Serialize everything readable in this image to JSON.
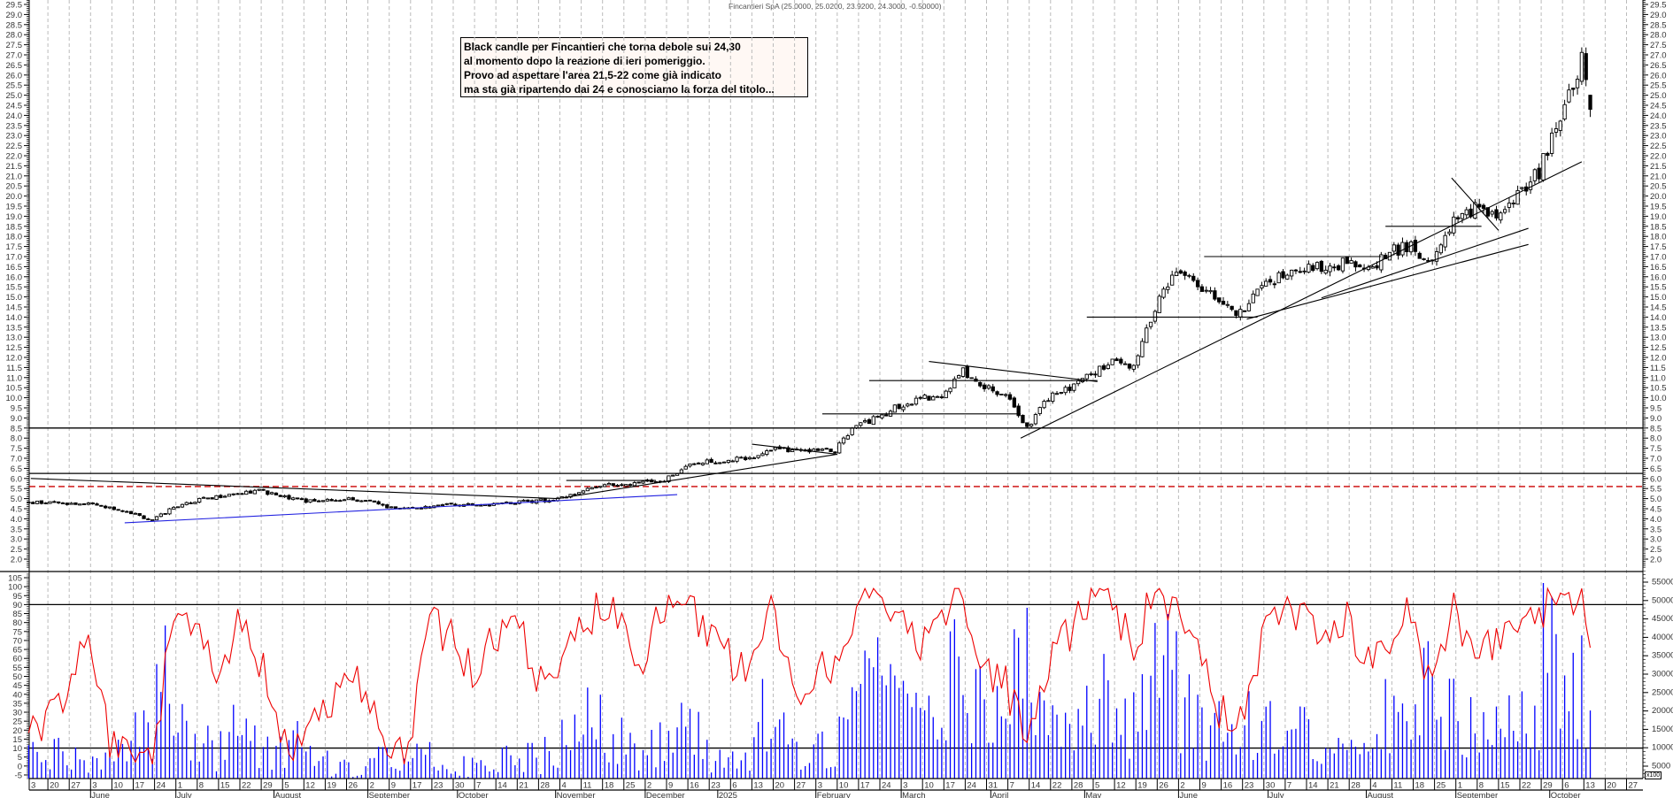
{
  "header": {
    "title": "Fincantieri SpA (25.0000, 25.0200, 23.9200, 24.3000, -0.50000)"
  },
  "annotation": {
    "lines": [
      "Black candle per Fincantieri che torna debole sui 24,30",
      "al momento dopo la reazione di ieri pomeriggio.",
      "Provo ad aspettare l'area 21,5-22 come già indicato",
      "ma sta già ripartendo dai 24 e conosciamo la forza del titolo..."
    ]
  },
  "chart_data": {
    "type": "candlestick",
    "instrument": "Fincantieri SpA",
    "last_candle": {
      "open": 25.0,
      "high": 25.02,
      "low": 23.92,
      "close": 24.3,
      "change": -0.5
    },
    "price_axis": {
      "ylim": [
        2.0,
        29.5
      ],
      "ticks": [
        "2.0",
        "2.5",
        "3.0",
        "3.5",
        "4.0",
        "4.5",
        "5.0",
        "5.5",
        "6.0",
        "6.5",
        "7.0",
        "7.5",
        "8.0",
        "8.5",
        "9.0",
        "9.5",
        "10.0",
        "10.5",
        "11.0",
        "11.5",
        "12.0",
        "12.5",
        "13.0",
        "13.5",
        "14.0",
        "14.5",
        "15.0",
        "15.5",
        "16.0",
        "16.5",
        "17.0",
        "17.5",
        "18.0",
        "18.5",
        "19.0",
        "19.5",
        "20.0",
        "20.5",
        "21.0",
        "21.5",
        "22.0",
        "22.5",
        "23.0",
        "23.5",
        "24.0",
        "24.5",
        "25.0",
        "25.5",
        "26.0",
        "26.5",
        "27.0",
        "27.5",
        "28.0",
        "28.5",
        "29.0",
        "29.5"
      ]
    },
    "oscillator_axis": {
      "ylim": [
        -5,
        105
      ],
      "ticks": [
        "105",
        "100",
        "95",
        "90",
        "85",
        "80",
        "75",
        "70",
        "65",
        "60",
        "55",
        "50",
        "45",
        "40",
        "35",
        "30",
        "25",
        "20",
        "15",
        "10",
        "5",
        "0",
        "-5"
      ],
      "levels": [
        90,
        10
      ]
    },
    "volume_axis": {
      "unit": "x100",
      "ticks": [
        "55000",
        "50000",
        "45000",
        "40000",
        "35000",
        "30000",
        "25000",
        "20000",
        "15000",
        "10000",
        "5000"
      ]
    },
    "x_axis": {
      "week_labels": [
        "3",
        "20",
        "27",
        "3",
        "10",
        "17",
        "24",
        "1",
        "8",
        "15",
        "22",
        "29",
        "5",
        "12",
        "19",
        "26",
        "2",
        "9",
        "17",
        "23",
        "30",
        "7",
        "14",
        "21",
        "28",
        "4",
        "11",
        "18",
        "25",
        "2",
        "9",
        "16",
        "23",
        "6",
        "13",
        "20",
        "27",
        "3",
        "10",
        "17",
        "24",
        "3",
        "10",
        "17",
        "24",
        "31",
        "7",
        "14",
        "22",
        "28",
        "5",
        "12",
        "19",
        "26",
        "2",
        "9",
        "16",
        "23",
        "30",
        "7",
        "14",
        "21",
        "28",
        "4",
        "11",
        "18",
        "25",
        "1",
        "8",
        "15",
        "22",
        "29",
        "6",
        "13",
        "20",
        "27"
      ],
      "month_labels": [
        "June",
        "July",
        "August",
        "September",
        "October",
        "November",
        "December",
        "2025",
        "February",
        "March",
        "April",
        "May",
        "June",
        "July",
        "August",
        "September",
        "October"
      ]
    },
    "weekly_close": [
      4.8,
      4.75,
      4.7,
      4.6,
      4.3,
      3.9,
      4.6,
      4.9,
      5.1,
      5.3,
      5.4,
      5.1,
      4.9,
      4.9,
      5.0,
      4.9,
      4.6,
      4.5,
      4.6,
      4.7,
      4.7,
      4.75,
      4.8,
      4.9,
      4.95,
      5.3,
      5.7,
      5.7,
      5.8,
      5.9,
      6.6,
      6.8,
      6.9,
      7.0,
      7.5,
      7.4,
      7.4,
      7.4,
      8.6,
      9.0,
      9.6,
      10.0,
      10.0,
      11.3,
      10.5,
      10.2,
      8.5,
      10.0,
      10.5,
      11.2,
      11.8,
      11.5,
      14.5,
      16.3,
      15.6,
      14.7,
      14.2,
      15.4,
      16.2,
      16.4,
      16.5,
      16.7,
      16.4,
      17.2,
      17.6,
      16.6,
      18.8,
      19.4,
      19.2,
      20.0,
      21.2,
      24.0,
      26.7,
      24.3
    ],
    "oscillator": [
      25,
      40,
      70,
      15,
      10,
      5,
      85,
      85,
      40,
      88,
      60,
      20,
      10,
      30,
      50,
      40,
      8,
      5,
      85,
      70,
      55,
      70,
      85,
      50,
      60,
      75,
      90,
      80,
      60,
      90,
      95,
      70,
      60,
      50,
      95,
      40,
      50,
      60,
      90,
      95,
      85,
      70,
      80,
      95,
      55,
      45,
      20,
      60,
      75,
      90,
      90,
      70,
      95,
      90,
      60,
      30,
      25,
      70,
      85,
      80,
      75,
      80,
      55,
      70,
      85,
      40,
      90,
      60,
      70,
      80,
      85,
      95,
      95,
      15
    ],
    "volume": [
      8000,
      9000,
      7000,
      6000,
      8000,
      15000,
      30000,
      14000,
      10000,
      18000,
      12000,
      9000,
      11000,
      8000,
      6000,
      5000,
      7000,
      9000,
      12000,
      6000,
      5000,
      5000,
      7000,
      9000,
      8000,
      13000,
      18000,
      12000,
      10000,
      13000,
      15000,
      14000,
      9000,
      8000,
      18000,
      12000,
      10000,
      12000,
      22000,
      25000,
      20000,
      18000,
      22000,
      30000,
      22000,
      18000,
      32000,
      16000,
      14000,
      18000,
      22000,
      20000,
      35000,
      30000,
      20000,
      14000,
      12000,
      16000,
      18000,
      14000,
      12000,
      13000,
      12000,
      18000,
      16000,
      25000,
      22000,
      20000,
      14000,
      16000,
      18000,
      35000,
      30000,
      18000
    ],
    "horizontal_lines": [
      {
        "price": 8.5,
        "color": "#000000",
        "style": "solid"
      },
      {
        "price": 6.25,
        "color": "#000000",
        "style": "solid"
      },
      {
        "price": 5.6,
        "color": "#cc0000",
        "style": "dashed"
      }
    ],
    "trendlines": [
      {
        "x1": 0.2,
        "y1": 6.0,
        "x2": 24.9,
        "y2": 5.0,
        "color": "#000000"
      },
      {
        "x1": 24.9,
        "y1": 5.0,
        "x2": 38,
        "y2": 7.2,
        "color": "#000000"
      },
      {
        "x1": 25.3,
        "y1": 5.9,
        "x2": 29.5,
        "y2": 5.9,
        "color": "#000000"
      },
      {
        "x1": 34,
        "y1": 7.7,
        "x2": 38,
        "y2": 7.2,
        "color": "#000000"
      },
      {
        "x1": 37.3,
        "y1": 9.2,
        "x2": 46.6,
        "y2": 9.2,
        "color": "#000000"
      },
      {
        "x1": 39.5,
        "y1": 10.85,
        "x2": 50.2,
        "y2": 10.85,
        "color": "#000000"
      },
      {
        "x1": 42.3,
        "y1": 11.8,
        "x2": 50.2,
        "y2": 10.8,
        "color": "#000000"
      },
      {
        "x1": 46.6,
        "y1": 8.0,
        "x2": 72.9,
        "y2": 21.7,
        "color": "#000000"
      },
      {
        "x1": 49.7,
        "y1": 14.0,
        "x2": 57.7,
        "y2": 14.0,
        "color": "#000000"
      },
      {
        "x1": 55.2,
        "y1": 17.0,
        "x2": 63.5,
        "y2": 17.0,
        "color": "#000000"
      },
      {
        "x1": 57.2,
        "y1": 13.9,
        "x2": 70.4,
        "y2": 17.6,
        "color": "#000000"
      },
      {
        "x1": 60.7,
        "y1": 14.95,
        "x2": 70.4,
        "y2": 18.4,
        "color": "#000000"
      },
      {
        "x1": 63.7,
        "y1": 18.5,
        "x2": 68.2,
        "y2": 18.5,
        "color": "#000000"
      },
      {
        "x1": 66.8,
        "y1": 20.9,
        "x2": 69.0,
        "y2": 18.3,
        "color": "#000000"
      },
      {
        "x1": 4.6,
        "y1": 3.8,
        "x2": 30.5,
        "y2": 5.2,
        "color": "#2020e0"
      }
    ],
    "colors": {
      "oscillator": "#ee0000",
      "volume": "#0000ff",
      "grid": "#bbbbbb",
      "bull": "#ffffff",
      "bear": "#000000"
    },
    "grid": true
  }
}
